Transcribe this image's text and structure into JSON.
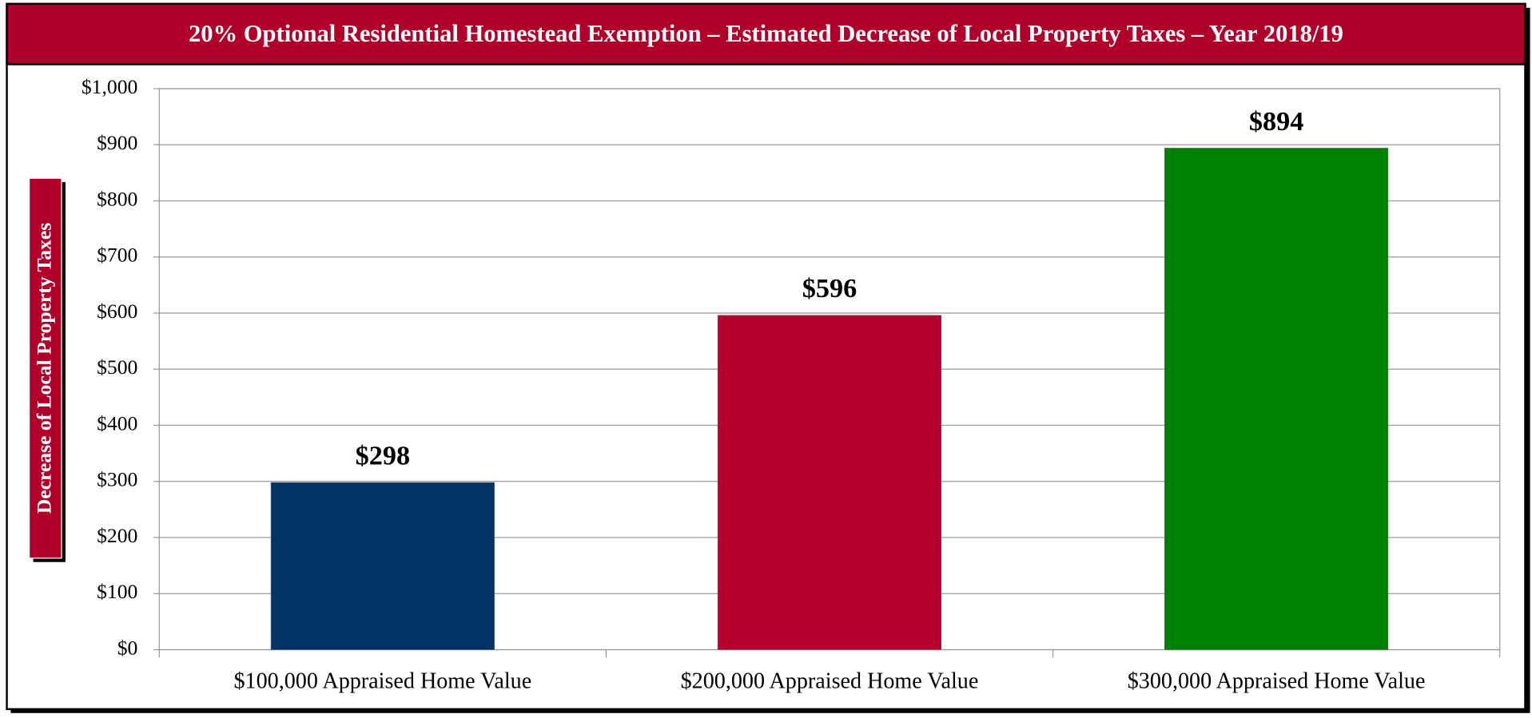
{
  "chart_data": {
    "type": "bar",
    "title": "20% Optional Residential Homestead Exemption – Estimated Decrease of Local Property Taxes – Year 2018/19",
    "y_label": "Decrease of Local Property Taxes",
    "categories": [
      "$100,000 Appraised Home Value",
      "$200,000 Appraised Home Value",
      "$300,000 Appraised Home Value"
    ],
    "values": [
      298,
      596,
      894
    ],
    "value_labels": [
      "$298",
      "$596",
      "$894"
    ],
    "colors": [
      "#003366",
      "#b5002b",
      "#008000"
    ],
    "ylim": [
      0,
      1000
    ],
    "yticks": [
      {
        "value": 0,
        "label": "$0"
      },
      {
        "value": 100,
        "label": "$100"
      },
      {
        "value": 200,
        "label": "$200"
      },
      {
        "value": 300,
        "label": "$300"
      },
      {
        "value": 400,
        "label": "$400"
      },
      {
        "value": 500,
        "label": "$500"
      },
      {
        "value": 600,
        "label": "$600"
      },
      {
        "value": 700,
        "label": "$700"
      },
      {
        "value": 800,
        "label": "$800"
      },
      {
        "value": 900,
        "label": "$900"
      },
      {
        "value": 1000,
        "label": "$1,000"
      }
    ],
    "grid": true
  }
}
